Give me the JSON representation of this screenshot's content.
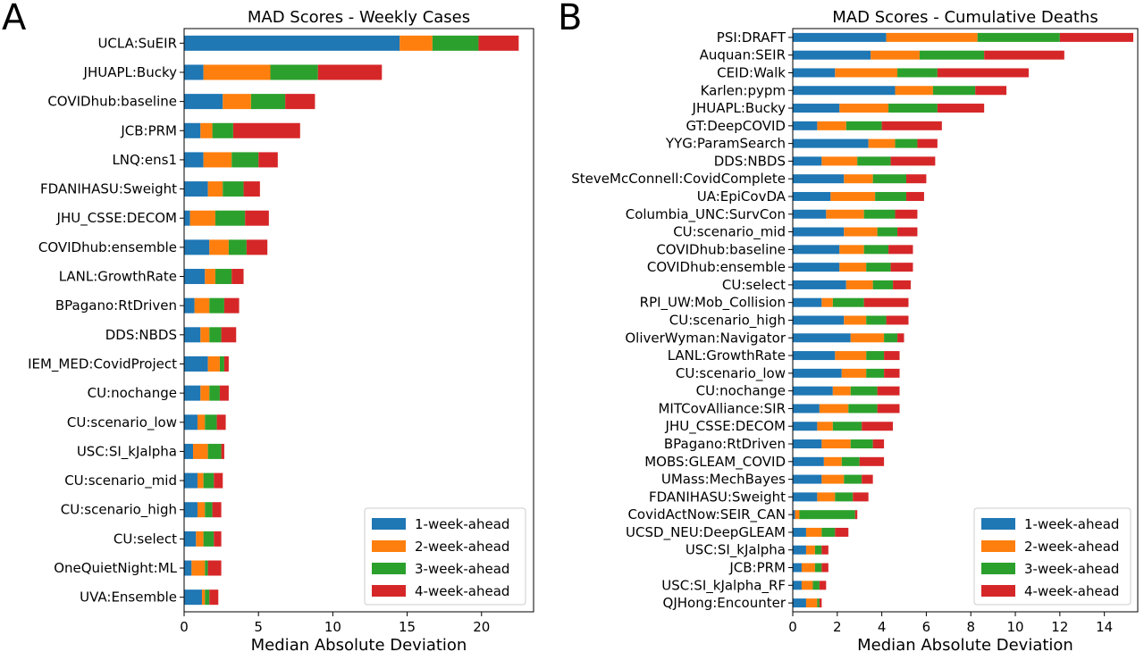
{
  "panels": [
    "A",
    "B"
  ],
  "legend_entries": [
    "1-week-ahead",
    "2-week-ahead",
    "3-week-ahead",
    "4-week-ahead"
  ],
  "colors": [
    "#1f77b4",
    "#ff7f0e",
    "#2ca02c",
    "#d62728"
  ],
  "chart_data": [
    {
      "panel": "A",
      "type": "bar",
      "orientation": "horizontal",
      "stacked": true,
      "title": "MAD Scores - Weekly Cases",
      "xlabel": "Median Absolute Deviation",
      "ylabel": "",
      "xlim": [
        0,
        23.5
      ],
      "xticks": [
        0,
        5,
        10,
        15,
        20
      ],
      "legend_position": "lower right",
      "grid": false,
      "categories": [
        "UCLA:SuEIR",
        "JHUAPL:Bucky",
        "COVIDhub:baseline",
        "JCB:PRM",
        "LNQ:ens1",
        "FDANIHASU:Sweight",
        "JHU_CSSE:DECOM",
        "COVIDhub:ensemble",
        "LANL:GrowthRate",
        "BPagano:RtDriven",
        "DDS:NBDS",
        "IEM_MED:CovidProject",
        "CU:nochange",
        "CU:scenario_low",
        "USC:SI_kJalpha",
        "CU:scenario_mid",
        "CU:scenario_high",
        "CU:select",
        "OneQuietNight:ML",
        "UVA:Ensemble"
      ],
      "series": [
        {
          "name": "1-week-ahead",
          "values": [
            14.5,
            1.3,
            2.6,
            1.1,
            1.3,
            1.6,
            0.4,
            1.7,
            1.4,
            0.7,
            1.1,
            1.6,
            1.1,
            0.9,
            0.6,
            0.9,
            0.9,
            0.8,
            0.5,
            1.2
          ]
        },
        {
          "name": "2-week-ahead",
          "values": [
            2.2,
            4.5,
            1.9,
            0.8,
            1.9,
            1.0,
            1.7,
            1.3,
            0.7,
            1.0,
            0.6,
            0.8,
            0.6,
            0.5,
            1.0,
            0.4,
            0.5,
            0.5,
            0.9,
            0.2
          ]
        },
        {
          "name": "3-week-ahead",
          "values": [
            3.1,
            3.2,
            2.3,
            1.4,
            1.8,
            1.4,
            2.0,
            1.2,
            1.1,
            1.0,
            0.8,
            0.3,
            0.7,
            0.8,
            0.9,
            0.7,
            0.5,
            0.7,
            0.2,
            0.3
          ]
        },
        {
          "name": "4-week-ahead",
          "values": [
            2.7,
            4.3,
            2.0,
            4.5,
            1.3,
            1.1,
            1.6,
            1.4,
            0.8,
            1.0,
            1.0,
            0.3,
            0.6,
            0.6,
            0.2,
            0.6,
            0.6,
            0.5,
            0.9,
            0.6
          ]
        }
      ]
    },
    {
      "panel": "B",
      "type": "bar",
      "orientation": "horizontal",
      "stacked": true,
      "title": "MAD Scores - Cumulative Deaths",
      "xlabel": "Median Absolute Deviation",
      "ylabel": "",
      "xlim": [
        0,
        15.5
      ],
      "xticks": [
        0,
        2,
        4,
        6,
        8,
        10,
        12,
        14
      ],
      "legend_position": "lower right",
      "grid": false,
      "categories": [
        "PSI:DRAFT",
        "Auquan:SEIR",
        "CEID:Walk",
        "Karlen:pypm",
        "JHUAPL:Bucky",
        "GT:DeepCOVID",
        "YYG:ParamSearch",
        "DDS:NBDS",
        "SteveMcConnell:CovidComplete",
        "UA:EpiCovDA",
        "Columbia_UNC:SurvCon",
        "CU:scenario_mid",
        "COVIDhub:baseline",
        "COVIDhub:ensemble",
        "CU:select",
        "RPI_UW:Mob_Collision",
        "CU:scenario_high",
        "OliverWyman:Navigator",
        "LANL:GrowthRate",
        "CU:scenario_low",
        "CU:nochange",
        "MITCovAlliance:SIR",
        "JHU_CSSE:DECOM",
        "BPagano:RtDriven",
        "MOBS:GLEAM_COVID",
        "UMass:MechBayes",
        "FDANIHASU:Sweight",
        "CovidActNow:SEIR_CAN",
        "UCSD_NEU:DeepGLEAM",
        "USC:SI_kJalpha",
        "JCB:PRM",
        "USC:SI_kJalpha_RF",
        "QJHong:Encounter"
      ],
      "series": [
        {
          "name": "1-week-ahead",
          "values": [
            4.2,
            3.5,
            1.9,
            4.6,
            2.1,
            1.1,
            3.4,
            1.3,
            2.3,
            1.7,
            1.5,
            2.3,
            2.1,
            2.1,
            2.4,
            1.3,
            2.3,
            2.6,
            1.9,
            2.2,
            1.8,
            1.2,
            1.1,
            1.3,
            1.4,
            1.3,
            1.1,
            0.1,
            0.6,
            0.6,
            0.4,
            0.4,
            0.6
          ]
        },
        {
          "name": "2-week-ahead",
          "values": [
            4.1,
            2.2,
            2.8,
            1.7,
            2.2,
            1.3,
            1.2,
            1.6,
            1.3,
            2.0,
            1.7,
            1.5,
            1.1,
            1.2,
            1.2,
            0.5,
            1.0,
            1.5,
            1.4,
            1.1,
            0.8,
            1.3,
            0.7,
            1.3,
            0.8,
            1.0,
            0.8,
            0.2,
            0.7,
            0.4,
            0.6,
            0.5,
            0.5
          ]
        },
        {
          "name": "3-week-ahead",
          "values": [
            3.7,
            2.9,
            1.8,
            1.9,
            2.2,
            1.6,
            1.0,
            1.5,
            1.5,
            1.4,
            1.4,
            0.9,
            1.1,
            1.1,
            0.9,
            1.4,
            0.9,
            0.6,
            0.8,
            0.8,
            1.2,
            1.3,
            1.3,
            1.0,
            0.8,
            0.8,
            0.8,
            2.5,
            0.6,
            0.3,
            0.3,
            0.3,
            0.1
          ]
        },
        {
          "name": "4-week-ahead",
          "values": [
            3.3,
            3.6,
            4.1,
            1.4,
            2.1,
            2.7,
            0.9,
            2.0,
            0.9,
            0.8,
            1.0,
            0.9,
            1.1,
            1.0,
            0.8,
            2.0,
            1.0,
            0.3,
            0.7,
            0.7,
            1.0,
            1.0,
            1.4,
            0.5,
            1.1,
            0.5,
            0.7,
            0.1,
            0.6,
            0.3,
            0.3,
            0.3,
            0.1
          ]
        }
      ]
    }
  ]
}
